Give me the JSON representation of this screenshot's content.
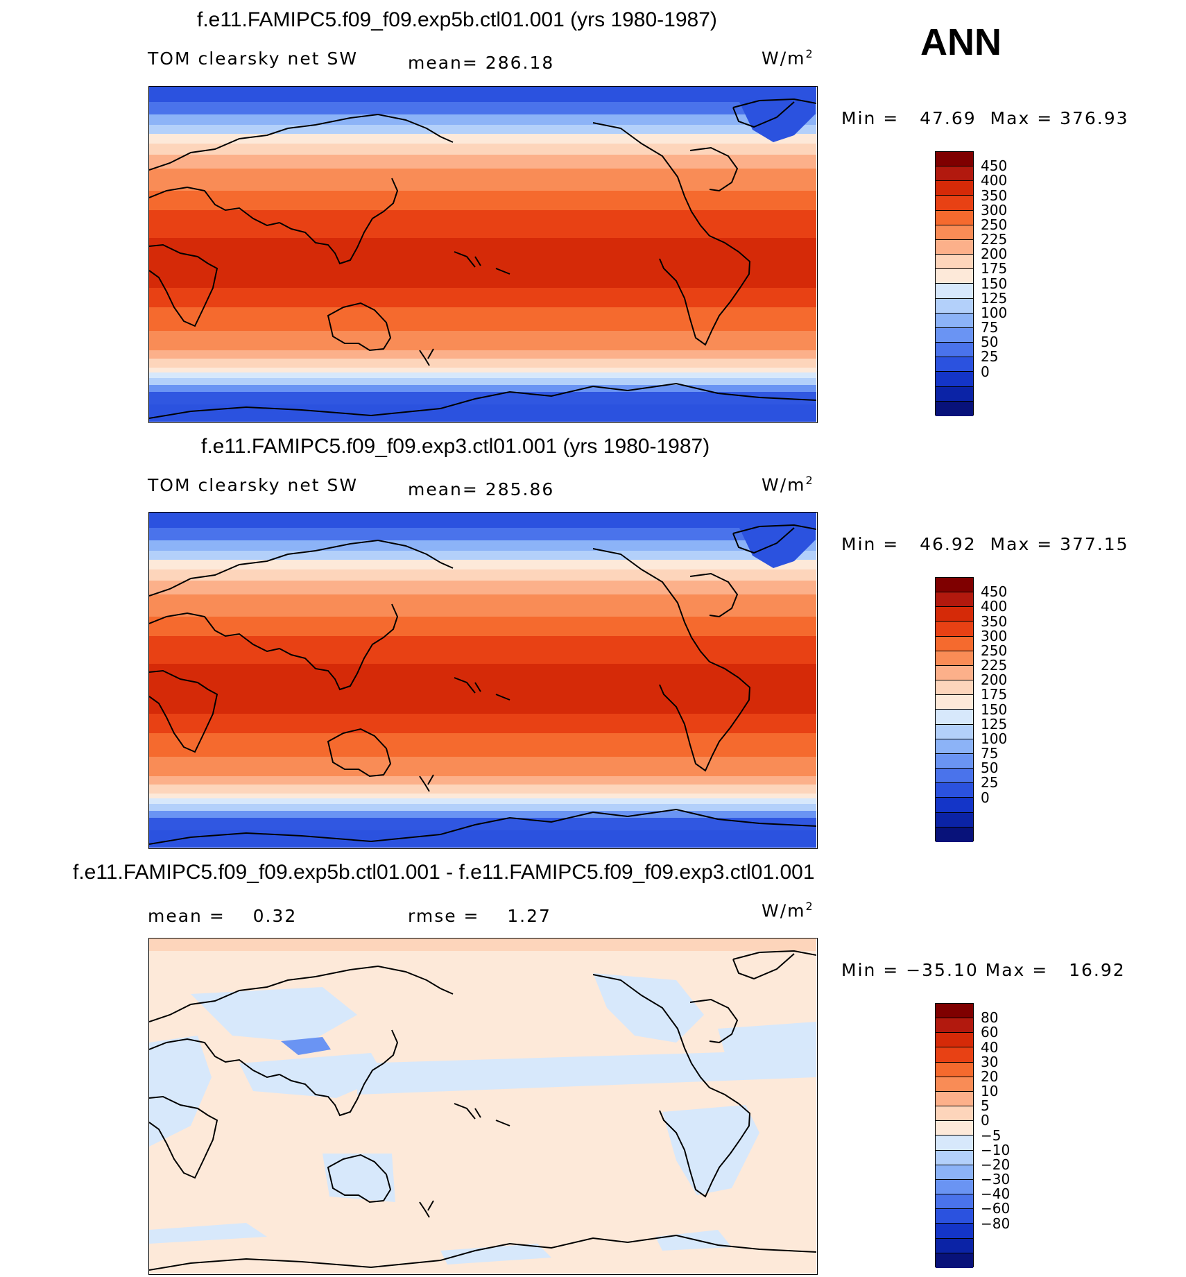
{
  "season": "ANN",
  "panels": [
    {
      "title": "f.e11.FAMIPC5.f09_f09.exp5b.ctl01.001 (yrs 1980-1987)",
      "variable": "TOM clearsky net SW",
      "mean_label": "mean= 286.18",
      "units": "W/m",
      "units_sup": "2",
      "minmax": "Min =   47.69  Max = 376.93",
      "map_type": "absolute",
      "colors": [
        "#7f0000",
        "#b2190e",
        "#d52a08",
        "#e84114",
        "#f56a2e",
        "#f98c56",
        "#fcb08a",
        "#fdd5bb",
        "#fde9d9",
        "#d7e8fb",
        "#b3d0fa",
        "#8cb3f7",
        "#6a94f3",
        "#4a73eb",
        "#2b52df",
        "#1435c8",
        "#0b23a6",
        "#08127a"
      ],
      "ticks": [
        "450",
        "400",
        "350",
        "300",
        "250",
        "225",
        "200",
        "175",
        "150",
        "125",
        "100",
        "75",
        "50",
        "25",
        "0"
      ]
    },
    {
      "title": "f.e11.FAMIPC5.f09_f09.exp3.ctl01.001 (yrs 1980-1987)",
      "variable": "TOM clearsky net SW",
      "mean_label": "mean= 285.86",
      "units": "W/m",
      "units_sup": "2",
      "minmax": "Min =   46.92  Max = 377.15",
      "map_type": "absolute",
      "colors": [
        "#7f0000",
        "#b2190e",
        "#d52a08",
        "#e84114",
        "#f56a2e",
        "#f98c56",
        "#fcb08a",
        "#fdd5bb",
        "#fde9d9",
        "#d7e8fb",
        "#b3d0fa",
        "#8cb3f7",
        "#6a94f3",
        "#4a73eb",
        "#2b52df",
        "#1435c8",
        "#0b23a6",
        "#08127a"
      ],
      "ticks": [
        "450",
        "400",
        "350",
        "300",
        "250",
        "225",
        "200",
        "175",
        "150",
        "125",
        "100",
        "75",
        "50",
        "25",
        "0"
      ]
    },
    {
      "title": "f.e11.FAMIPC5.f09_f09.exp5b.ctl01.001 - f.e11.FAMIPC5.f09_f09.exp3.ctl01.001",
      "mean_label": "mean =    0.32",
      "rmse_label": "rmse =    1.27",
      "units": "W/m",
      "units_sup": "2",
      "minmax": "Min = −35.10 Max =   16.92",
      "map_type": "difference",
      "colors": [
        "#7f0000",
        "#b2190e",
        "#d52a08",
        "#e84114",
        "#f56a2e",
        "#f98c56",
        "#fcb08a",
        "#fdd5bb",
        "#fde9d9",
        "#d7e8fb",
        "#b3d0fa",
        "#8cb3f7",
        "#6a94f3",
        "#4a73eb",
        "#2b52df",
        "#1435c8",
        "#0b23a6",
        "#08127a"
      ],
      "ticks": [
        "80",
        "60",
        "40",
        "30",
        "20",
        "10",
        "5",
        "0",
        "−5",
        "−10",
        "−20",
        "−30",
        "−40",
        "−60",
        "−80"
      ]
    }
  ]
}
